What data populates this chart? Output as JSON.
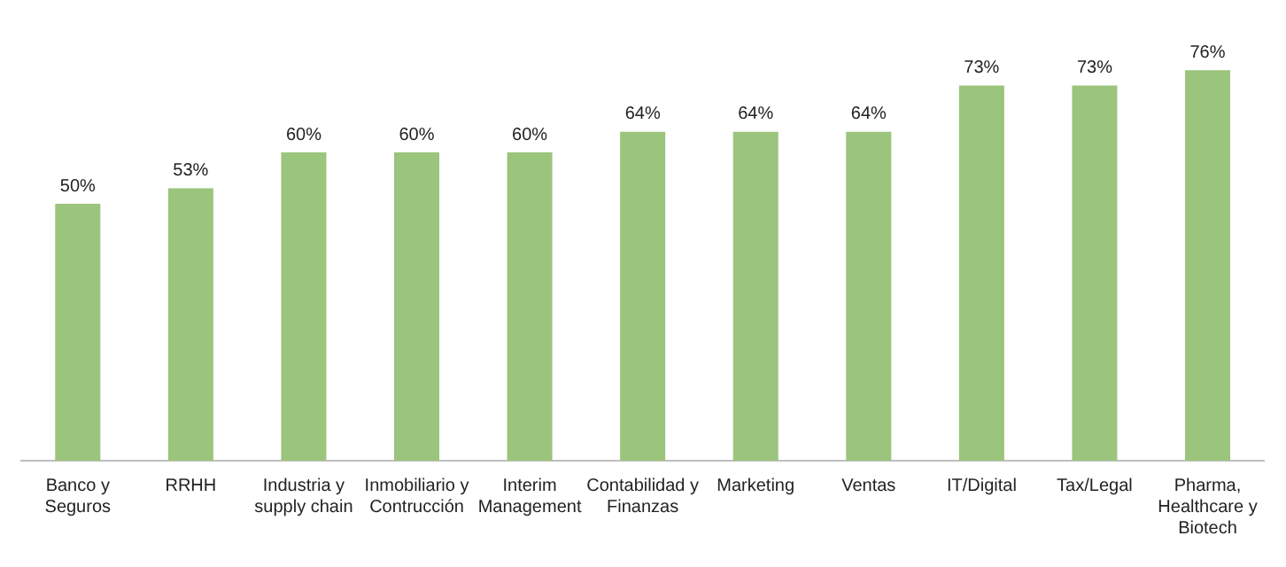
{
  "chart_data": {
    "type": "bar",
    "categories": [
      "Banco y Seguros",
      "RRHH",
      "Industria y supply chain",
      "Inmobiliario y Contrucción",
      "Interim Management",
      "Contabilidad y Finanzas",
      "Marketing",
      "Ventas",
      "IT/Digital",
      "Tax/Legal",
      "Pharma, Healthcare y Biotech"
    ],
    "values": [
      50,
      53,
      60,
      60,
      60,
      64,
      64,
      64,
      73,
      73,
      76
    ],
    "value_labels": [
      "50%",
      "53%",
      "60%",
      "60%",
      "60%",
      "64%",
      "64%",
      "64%",
      "73%",
      "73%",
      "76%"
    ],
    "color": "#9bc47c",
    "tick_labels": "x",
    "grid": false,
    "legend": false
  }
}
